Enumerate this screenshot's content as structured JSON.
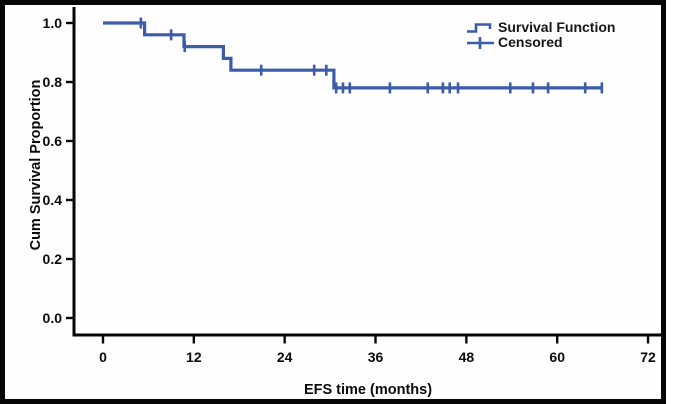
{
  "accent_color": "#3C5BA8",
  "frame_color": "#060606",
  "legend": {
    "items": [
      {
        "label": "Survival Function",
        "icon": "step-line-icon"
      },
      {
        "label": "Censored",
        "icon": "plus-icon"
      }
    ]
  },
  "chart_data": {
    "type": "line",
    "subtype": "kaplan_meier_step",
    "title": "",
    "xlabel": "EFS time (months)",
    "ylabel": "Cum Survival Proportion",
    "xlim": [
      0,
      72
    ],
    "ylim": [
      0.0,
      1.0
    ],
    "x_ticks": [
      0,
      12,
      24,
      36,
      48,
      60,
      72
    ],
    "x_tick_labels": [
      "0",
      "12",
      "24",
      "36",
      "48",
      "60",
      "72"
    ],
    "y_ticks": [
      1.0,
      0.8,
      0.6,
      0.4,
      0.2,
      0.0
    ],
    "y_tick_labels": [
      "1.0",
      "0.8",
      "0.6",
      "0.4",
      "0.2",
      "0.0"
    ],
    "grid": false,
    "legend_position": "top-right",
    "series": [
      {
        "name": "Survival Function",
        "color": "#3C5BA8",
        "step_points": [
          [
            0,
            1.0
          ],
          [
            5.5,
            1.0
          ],
          [
            5.5,
            0.96
          ],
          [
            10.7,
            0.96
          ],
          [
            10.7,
            0.92
          ],
          [
            15.9,
            0.92
          ],
          [
            15.9,
            0.88
          ],
          [
            16.9,
            0.88
          ],
          [
            16.9,
            0.84
          ],
          [
            30.5,
            0.84
          ],
          [
            30.5,
            0.78
          ],
          [
            66.0,
            0.78
          ]
        ]
      }
    ],
    "censored": {
      "name": "Censored",
      "color": "#3C5BA8",
      "points": [
        [
          5.0,
          1.0
        ],
        [
          9.0,
          0.96
        ],
        [
          10.8,
          0.92
        ],
        [
          20.9,
          0.84
        ],
        [
          27.9,
          0.84
        ],
        [
          29.5,
          0.84
        ],
        [
          30.8,
          0.78
        ],
        [
          31.7,
          0.78
        ],
        [
          32.6,
          0.78
        ],
        [
          37.9,
          0.78
        ],
        [
          42.9,
          0.78
        ],
        [
          44.9,
          0.78
        ],
        [
          45.8,
          0.78
        ],
        [
          46.9,
          0.78
        ],
        [
          53.8,
          0.78
        ],
        [
          56.8,
          0.78
        ],
        [
          58.8,
          0.78
        ],
        [
          63.7,
          0.78
        ],
        [
          65.9,
          0.78
        ]
      ]
    }
  }
}
